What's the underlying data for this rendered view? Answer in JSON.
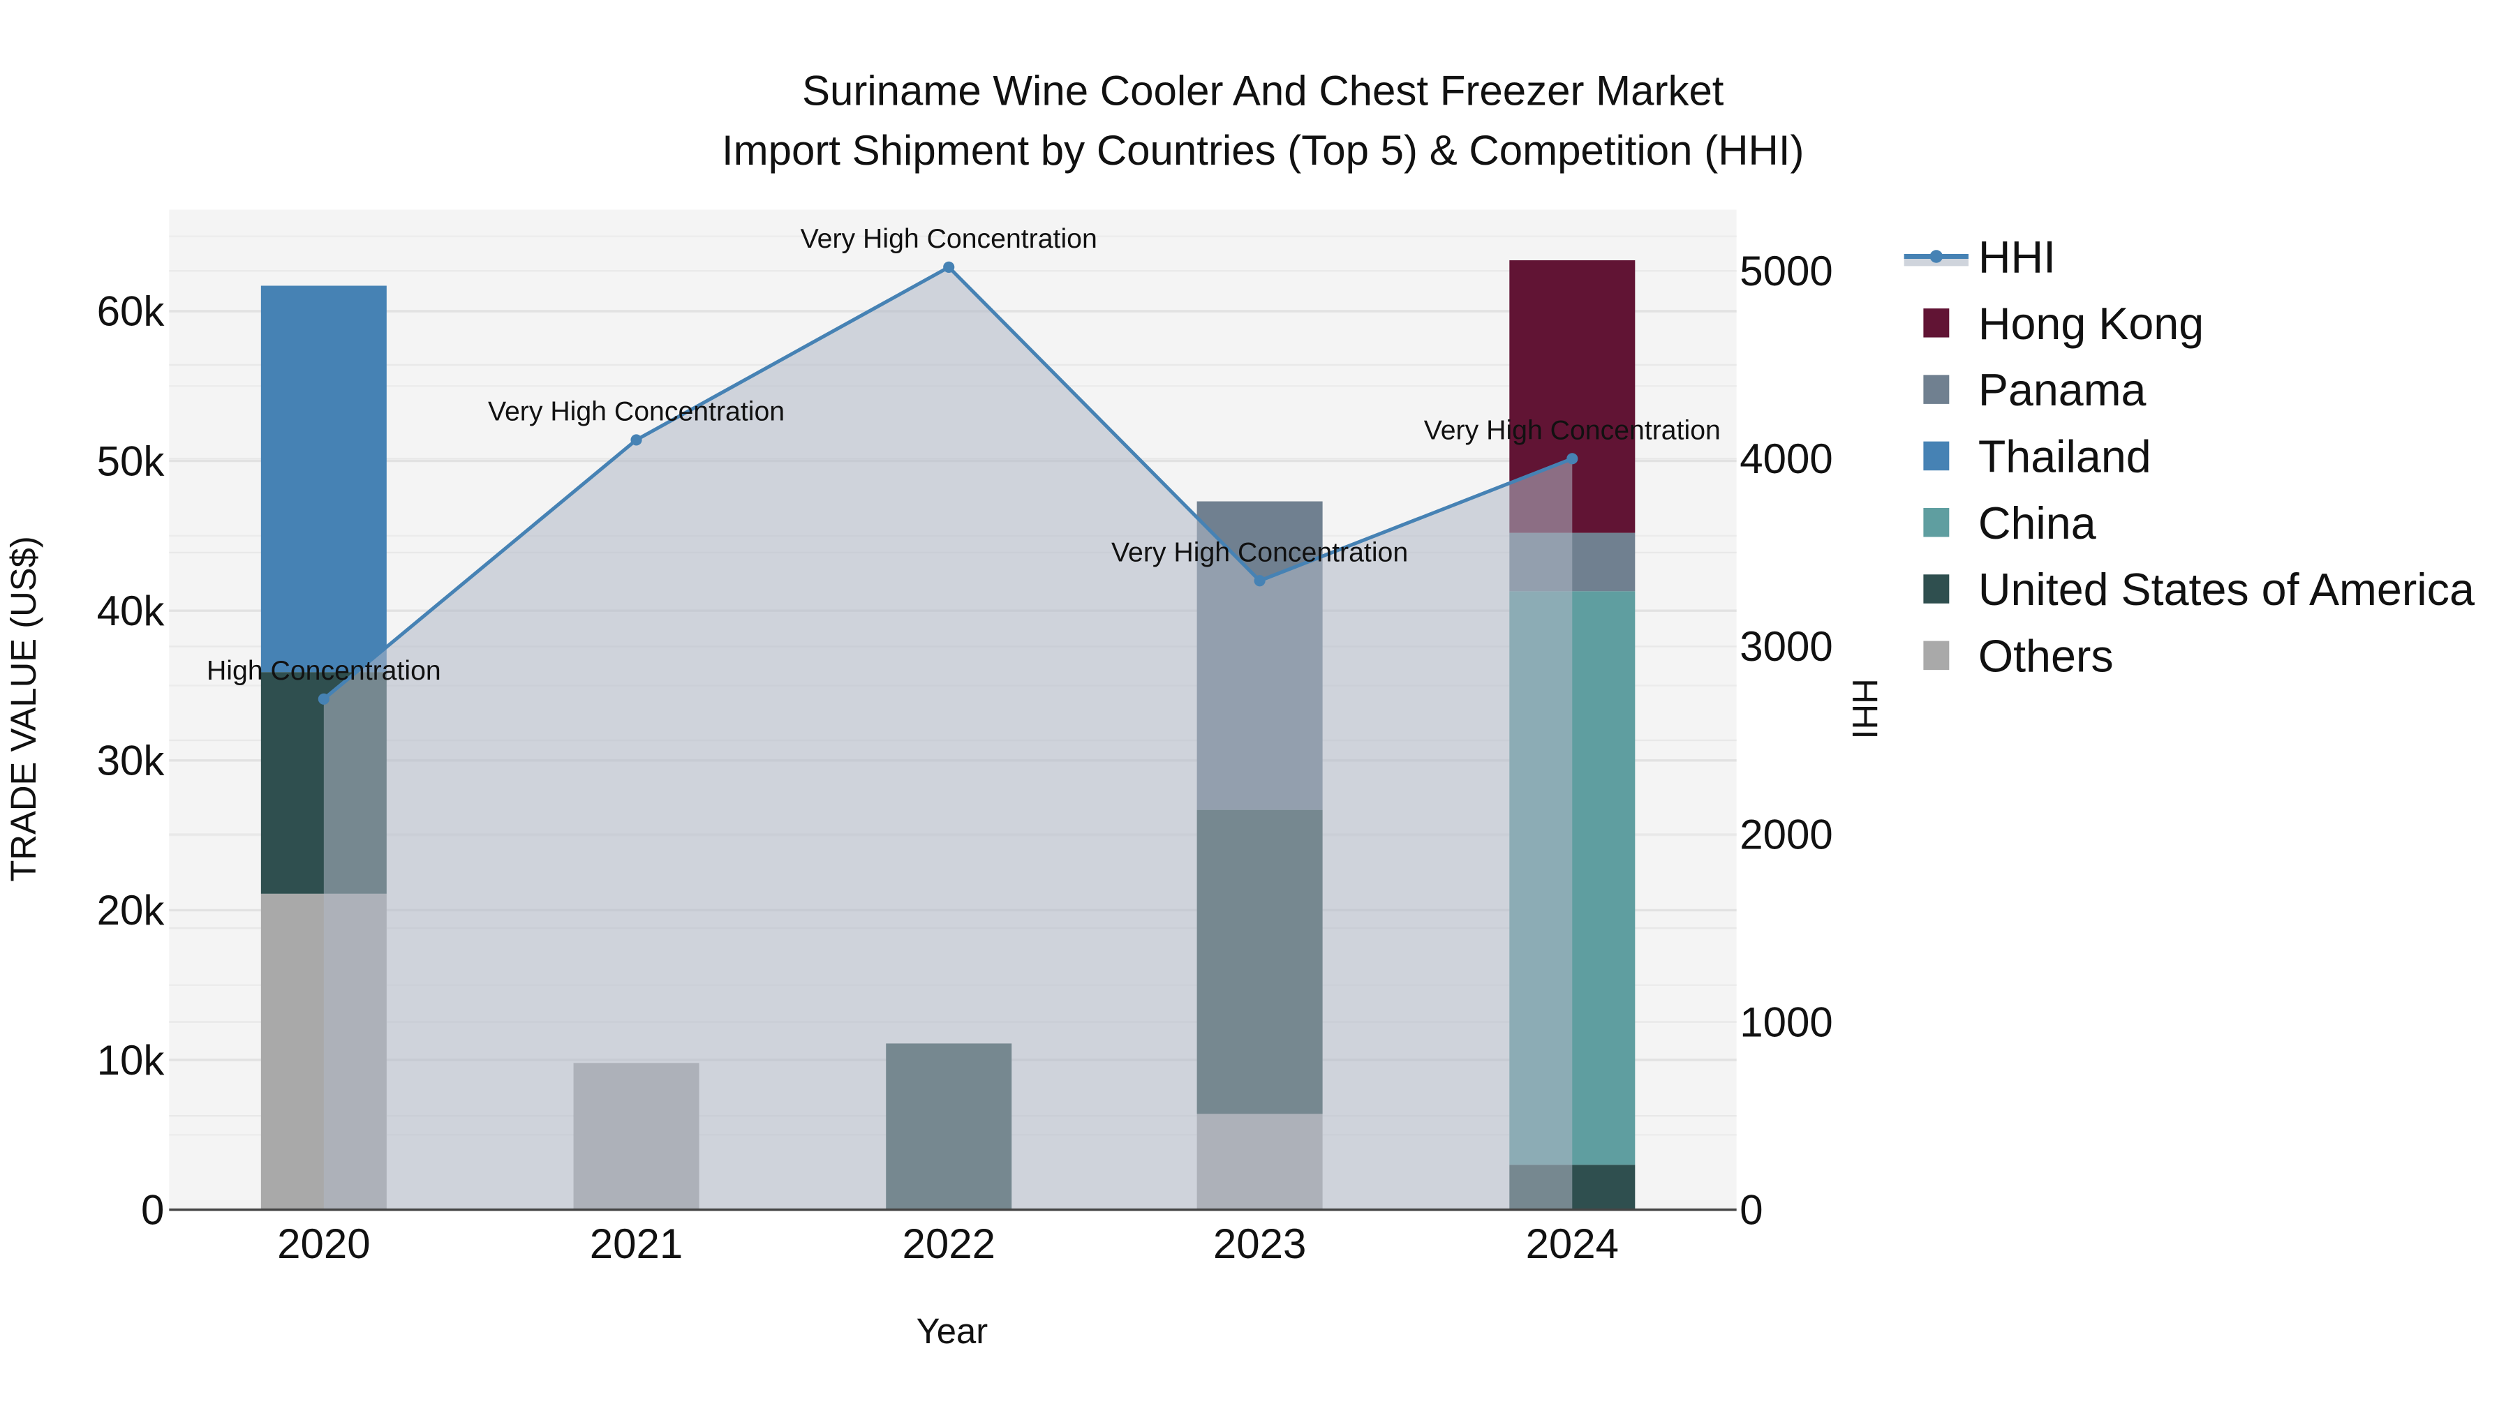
{
  "title": {
    "line1": "Suriname Wine Cooler And Chest Freezer Market",
    "line2": "Import Shipment by Countries (Top 5) & Competition (HHI)"
  },
  "axes": {
    "xlabel": "Year",
    "ylabel_left": "TRADE VALUE (US$)",
    "ylabel_right": "HHI",
    "left_ticks": [
      "0",
      "10k",
      "20k",
      "30k",
      "40k",
      "50k",
      "60k"
    ],
    "right_ticks": [
      "0",
      "1000",
      "2000",
      "3000",
      "4000",
      "5000"
    ],
    "x_ticks": [
      "2020",
      "2021",
      "2022",
      "2023",
      "2024"
    ]
  },
  "legend": [
    {
      "name": "HHI",
      "color": "#4682b4",
      "type": "line"
    },
    {
      "name": "Hong Kong",
      "color": "#611434",
      "type": "bar"
    },
    {
      "name": "Panama",
      "color": "#708090",
      "type": "bar"
    },
    {
      "name": "Thailand",
      "color": "#4682b4",
      "type": "bar"
    },
    {
      "name": "China",
      "color": "#5f9ea0",
      "type": "bar"
    },
    {
      "name": "United States of America",
      "color": "#2f4f4f",
      "type": "bar"
    },
    {
      "name": "Others",
      "color": "#a9a9a9",
      "type": "bar"
    }
  ],
  "chart_data": {
    "type": "bar",
    "stacked": true,
    "title": "Suriname Wine Cooler And Chest Freezer Market Import Shipment by Countries (Top 5) & Competition (HHI)",
    "xlabel": "Year",
    "ylabel": "TRADE VALUE (US$)",
    "y2label": "HHI",
    "categories": [
      "2020",
      "2021",
      "2022",
      "2023",
      "2024"
    ],
    "ylim": [
      0,
      66000
    ],
    "y2lim": [
      0,
      5300
    ],
    "series": [
      {
        "name": "Others",
        "color": "#a9a9a9",
        "values": [
          21100,
          9800,
          0,
          6400,
          0
        ]
      },
      {
        "name": "United States of America",
        "color": "#2f4f4f",
        "values": [
          14800,
          0,
          11100,
          20300,
          3000
        ]
      },
      {
        "name": "China",
        "color": "#5f9ea0",
        "values": [
          0,
          0,
          0,
          0,
          38300
        ]
      },
      {
        "name": "Thailand",
        "color": "#4682b4",
        "values": [
          25800,
          0,
          0,
          0,
          0
        ]
      },
      {
        "name": "Panama",
        "color": "#708090",
        "values": [
          0,
          0,
          0,
          20600,
          3900
        ]
      },
      {
        "name": "Hong Kong",
        "color": "#611434",
        "values": [
          0,
          0,
          0,
          0,
          18200
        ]
      }
    ],
    "line_series": {
      "name": "HHI",
      "axis": "right",
      "color": "#4682b4",
      "values": [
        2720,
        4100,
        5020,
        3350,
        4000
      ],
      "labels": [
        "High Concentration",
        "Very High Concentration",
        "Very High Concentration",
        "Very High Concentration",
        "Very High Concentration"
      ]
    },
    "legend_position": "right",
    "grid": true
  }
}
